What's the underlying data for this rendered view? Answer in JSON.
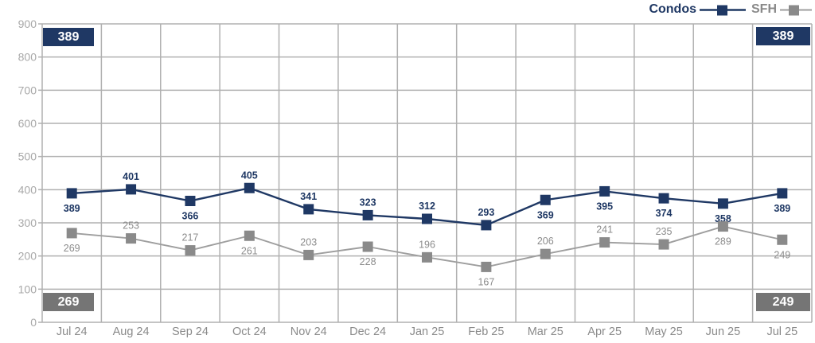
{
  "legend": {
    "items": [
      {
        "label": "Condos",
        "color": "#1f3864"
      },
      {
        "label": "SFH",
        "color": "#8a8a8a",
        "line_color": "#9e9e9e"
      }
    ]
  },
  "badges": {
    "top_left": "389",
    "top_right": "389",
    "bottom_left": "269",
    "bottom_right": "249",
    "navy_bg": "#1f3864",
    "gray_bg": "#757575"
  },
  "chart_data": {
    "type": "line",
    "title": "",
    "xlabel": "",
    "ylabel": "",
    "categories": [
      "Jul 24",
      "Aug 24",
      "Sep 24",
      "Oct 24",
      "Nov 24",
      "Dec 24",
      "Jan 25",
      "Feb 25",
      "Mar 25",
      "Apr 25",
      "May 25",
      "Jun 25",
      "Jul 25"
    ],
    "series": [
      {
        "name": "Condos",
        "values": [
          389,
          401,
          366,
          405,
          341,
          323,
          312,
          293,
          369,
          395,
          374,
          358,
          389
        ],
        "label_side": [
          "below",
          "above",
          "below",
          "above",
          "above",
          "above",
          "above",
          "above",
          "below",
          "below",
          "below",
          "below",
          "below"
        ],
        "line_color": "#1f3864",
        "marker_color": "#1f3864",
        "label_color": "#1f3864",
        "label_weight": "700",
        "line_width": 2.4,
        "marker": "square"
      },
      {
        "name": "SFH",
        "values": [
          269,
          253,
          217,
          261,
          203,
          228,
          196,
          167,
          206,
          241,
          235,
          289,
          249
        ],
        "label_side": [
          "below",
          "above",
          "above",
          "below",
          "above",
          "below",
          "above",
          "below",
          "above",
          "above",
          "above",
          "below",
          "below"
        ],
        "line_color": "#9e9e9e",
        "marker_color": "#8a8a8a",
        "label_color": "#8c8c8c",
        "label_weight": "400",
        "line_width": 1.9,
        "marker": "square"
      }
    ],
    "ylim": [
      0,
      900
    ],
    "ytick_interval": 100,
    "grid": true,
    "grid_color": "#b0b0b0",
    "ytick_label_color": "#a8a8a8",
    "xtick_label_color": "#8a8a8a",
    "legend_position": "top-right"
  }
}
